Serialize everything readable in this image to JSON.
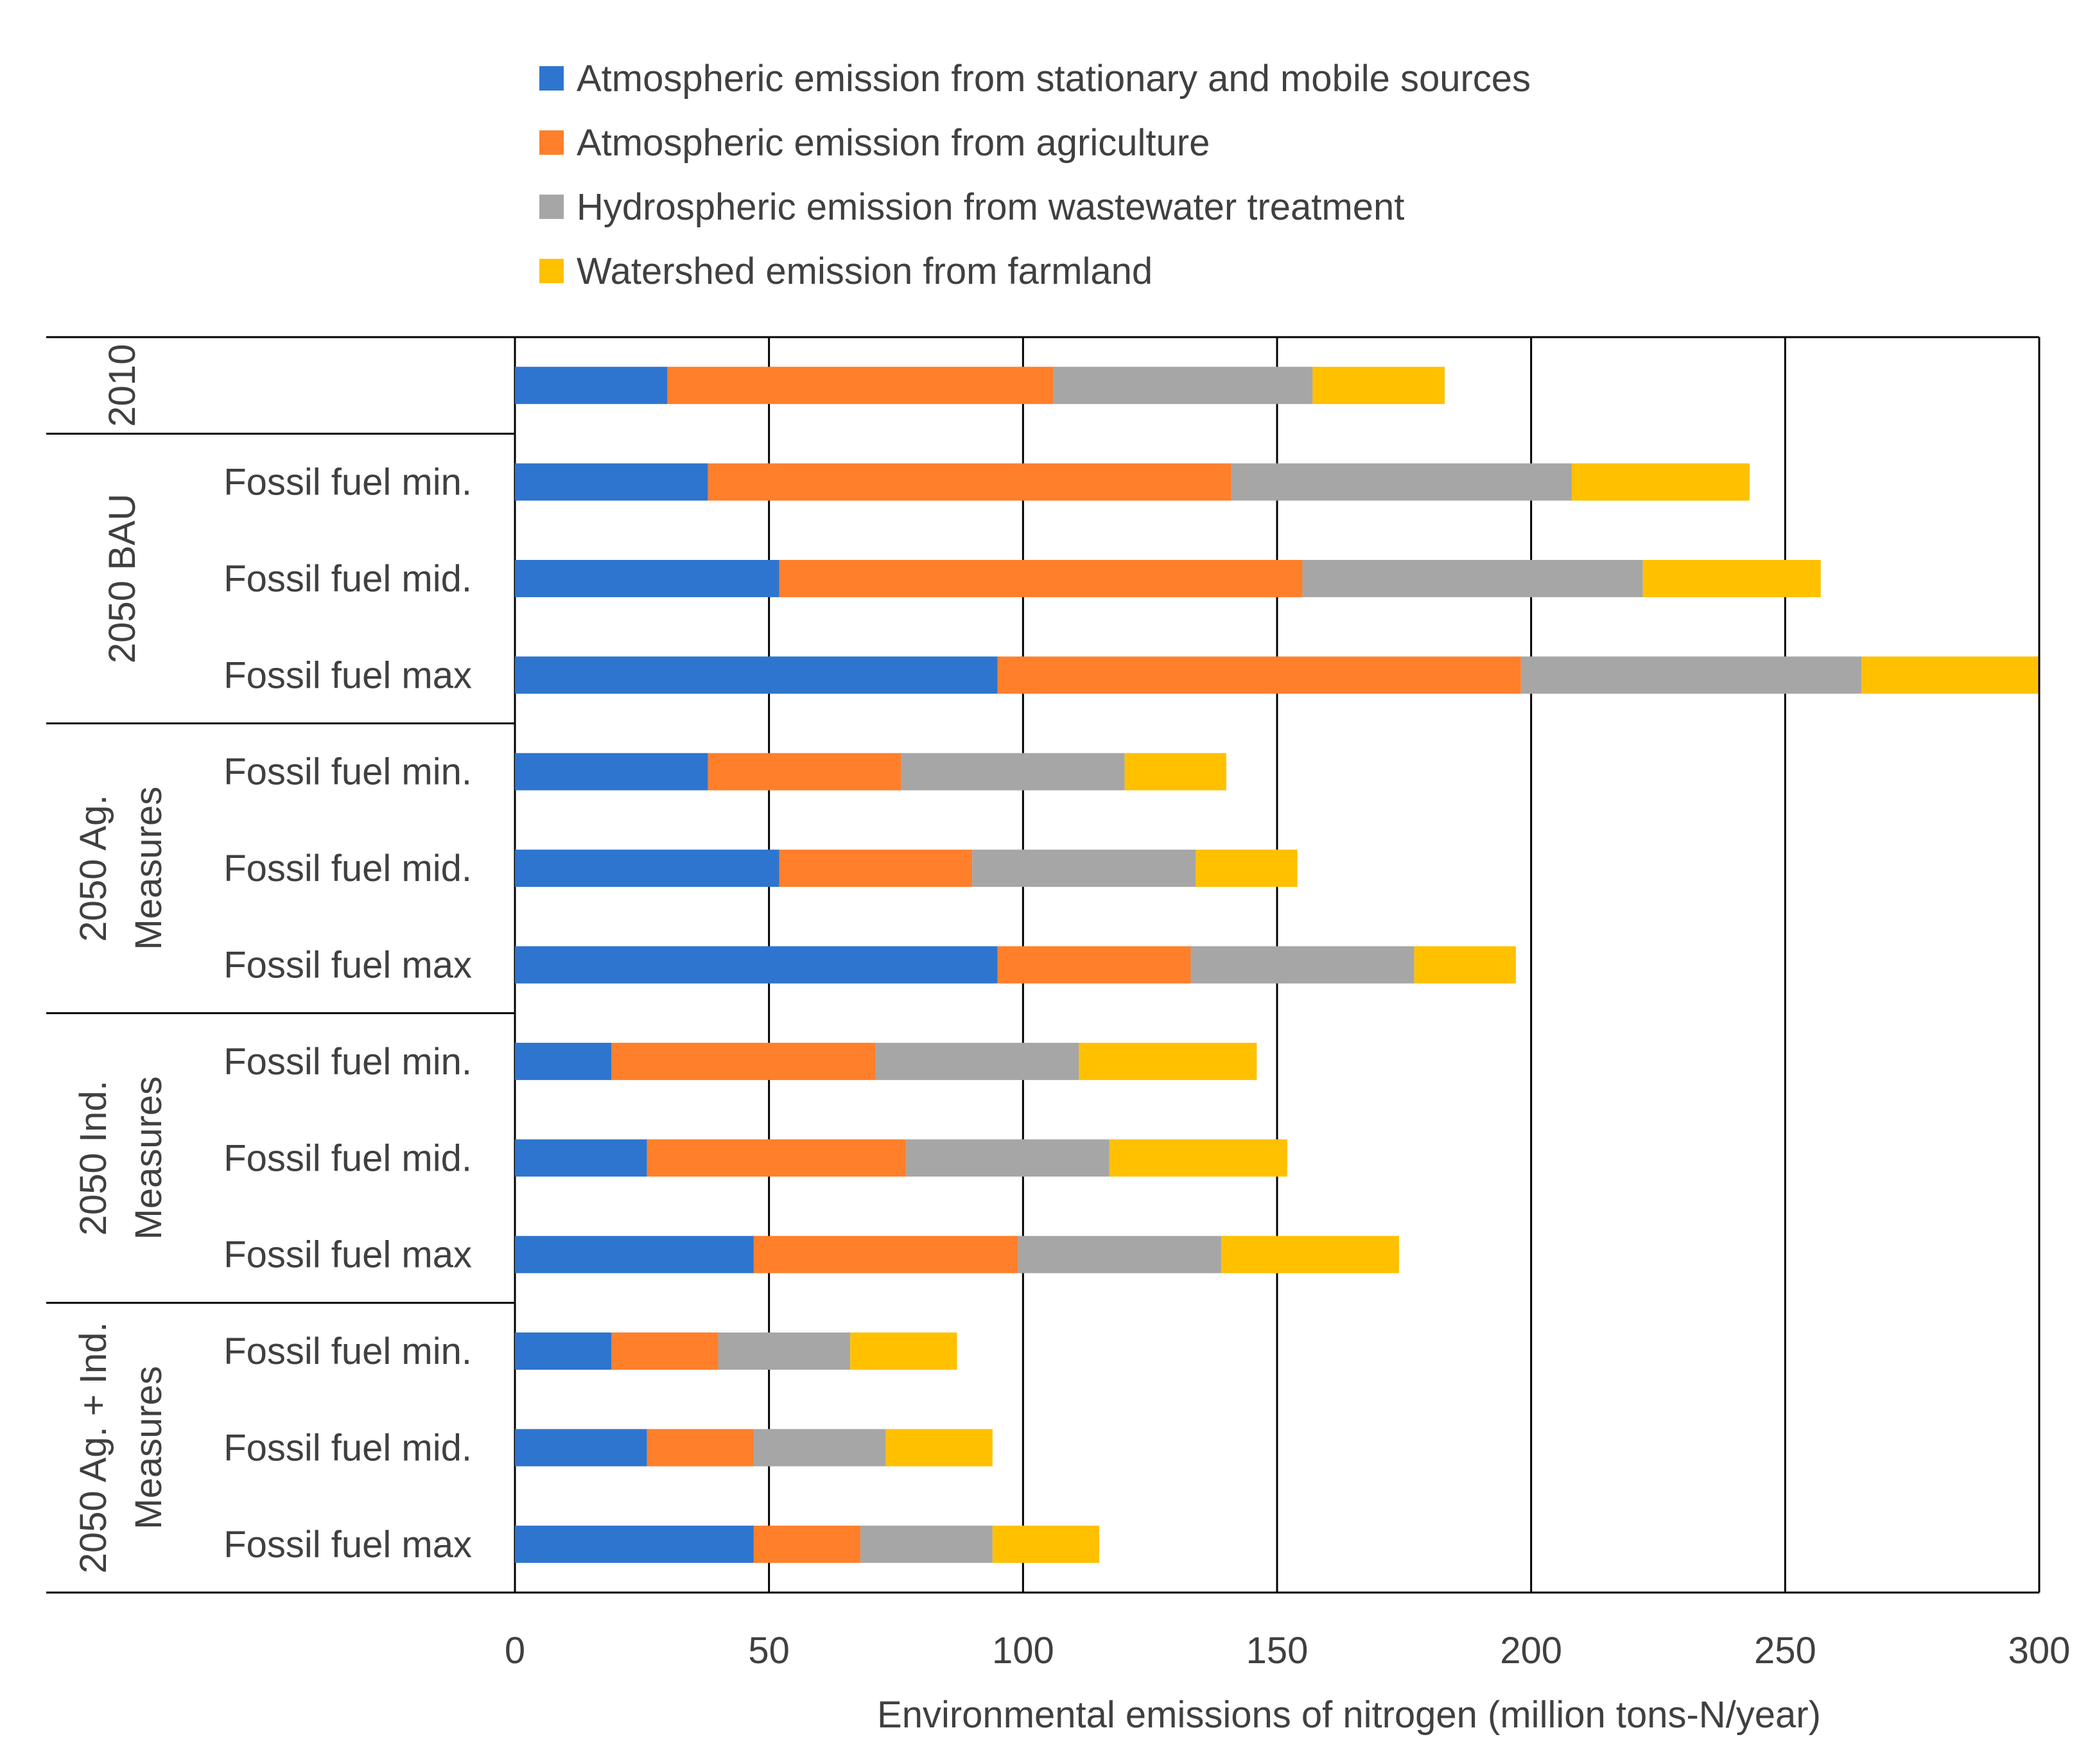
{
  "colors": {
    "stationary_mobile": "#2E75CF",
    "agriculture": "#FF7F2A",
    "wastewater": "#A6A6A6",
    "farmland": "#FFC000"
  },
  "chart_data": {
    "type": "bar",
    "orientation": "horizontal",
    "stacked": true,
    "xlabel": "Environmental  emissions  of nitrogen  (million tons-N/year)",
    "xlim": [
      0,
      300
    ],
    "xticks": [
      0,
      50,
      100,
      150,
      200,
      250,
      300
    ],
    "grid": true,
    "legend_position": "top",
    "series": [
      {
        "name": "Atmospheric emission from stationary and mobile sources",
        "color_key": "stationary_mobile",
        "values": [
          30,
          38,
          52,
          95,
          38,
          52,
          95,
          19,
          26,
          47,
          19,
          26,
          47
        ]
      },
      {
        "name": "Atmospheric emission from agriculture",
        "color_key": "agriculture",
        "values": [
          76,
          103,
          103,
          103,
          38,
          38,
          38,
          52,
          51,
          52,
          21,
          21,
          21
        ]
      },
      {
        "name": "Hydrospheric emission from  wastewater treatment",
        "color_key": "wastewater",
        "values": [
          51,
          67,
          67,
          67,
          44,
          44,
          44,
          40,
          40,
          40,
          26,
          26,
          26
        ]
      },
      {
        "name": "Watershed emission from farmland",
        "color_key": "farmland",
        "values": [
          26,
          35,
          35,
          35,
          20,
          20,
          20,
          35,
          35,
          35,
          21,
          21,
          21
        ]
      }
    ],
    "groups": [
      {
        "label_lines": [
          "2010"
        ],
        "rows": [
          ""
        ]
      },
      {
        "label_lines": [
          "2050 BAU"
        ],
        "rows": [
          "Fossil fuel min.",
          "Fossil fuel mid.",
          "Fossil fuel max"
        ]
      },
      {
        "label_lines": [
          "2050 Ag.",
          "Measures"
        ],
        "rows": [
          "Fossil fuel min.",
          "Fossil fuel mid.",
          "Fossil fuel max"
        ]
      },
      {
        "label_lines": [
          "2050 Ind.",
          "Measures"
        ],
        "rows": [
          "Fossil fuel min.",
          "Fossil fuel mid.",
          "Fossil fuel max"
        ]
      },
      {
        "label_lines": [
          "2050 Ag. + Ind.",
          "Measures"
        ],
        "rows": [
          "Fossil fuel min.",
          "Fossil fuel mid.",
          "Fossil fuel max"
        ]
      }
    ]
  }
}
